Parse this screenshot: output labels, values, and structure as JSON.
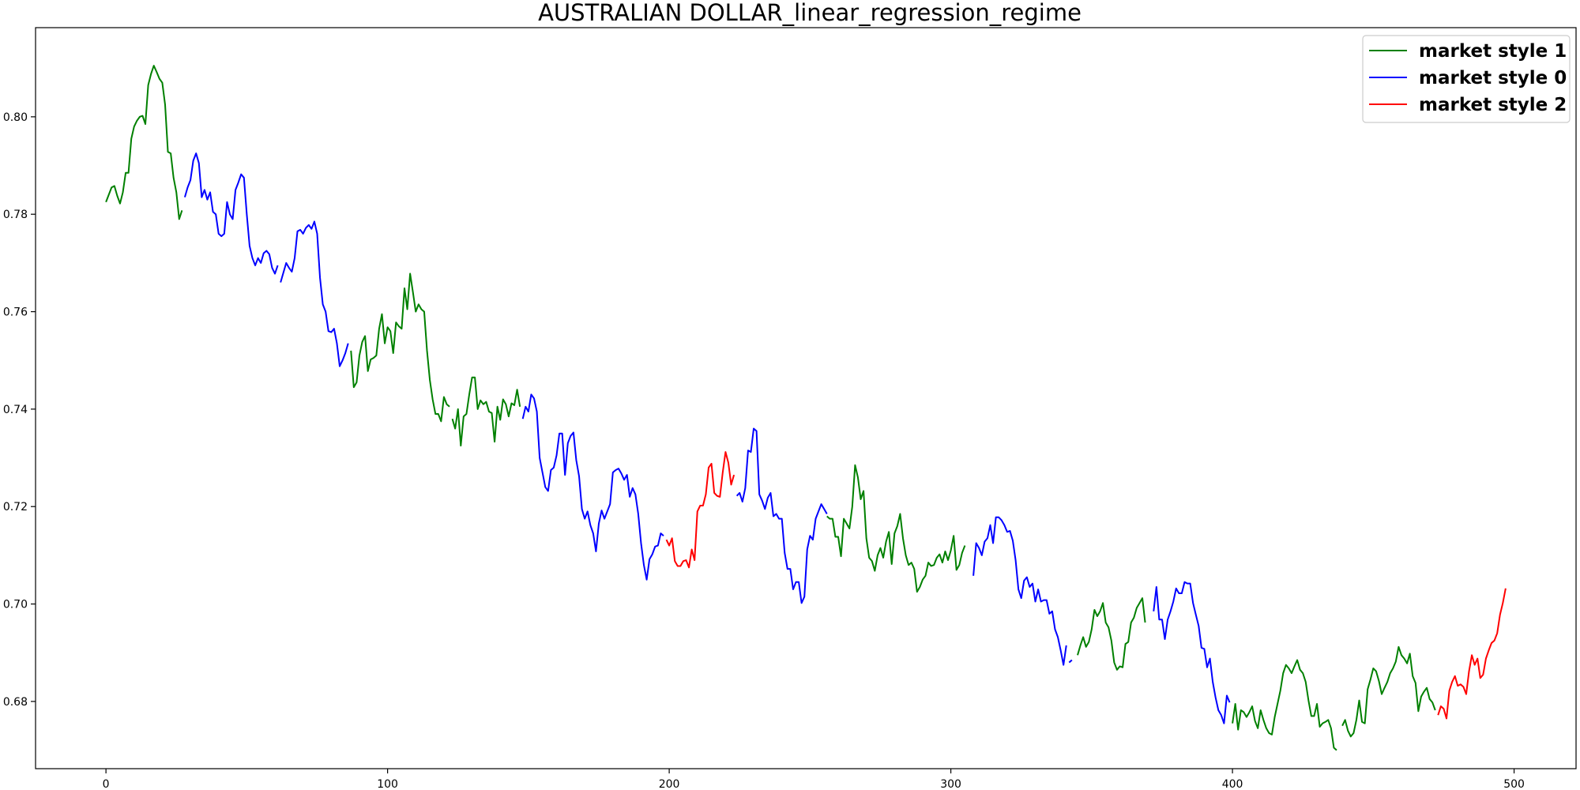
{
  "chart_data": {
    "type": "line",
    "title": "AUSTRALIAN DOLLAR_linear_regression_regime",
    "xlabel": "",
    "ylabel": "",
    "xlim": [
      -25,
      522
    ],
    "ylim": [
      0.6662,
      0.8183
    ],
    "xticks": [
      0,
      100,
      200,
      300,
      400,
      500
    ],
    "yticks": [
      0.68,
      0.7,
      0.72,
      0.74,
      0.76,
      0.78,
      0.8
    ],
    "ytick_labels": [
      "0.68",
      "0.70",
      "0.72",
      "0.74",
      "0.76",
      "0.78",
      "0.80"
    ],
    "legend_position": "top-right",
    "grid": false,
    "legend": [
      {
        "label": "market style 1",
        "color": "#008000"
      },
      {
        "label": "market style 0",
        "color": "#0000ff"
      },
      {
        "label": "market style 2",
        "color": "#ff0000"
      }
    ],
    "segments": [
      {
        "regime": 1,
        "color": "#008000",
        "x0": 0,
        "y": [
          0.7825,
          0.784,
          0.7855,
          0.7858,
          0.7838,
          0.7822,
          0.7845,
          0.7885,
          0.7885,
          0.7955,
          0.798,
          0.7992,
          0.8,
          0.8002,
          0.7985,
          0.8065,
          0.8088,
          0.8105,
          0.8092,
          0.8078,
          0.807,
          0.8025,
          0.7928,
          0.7925,
          0.7875,
          0.7845,
          0.779,
          0.7808
        ]
      },
      {
        "regime": 0,
        "color": "#0000ff",
        "x0": 28,
        "y": [
          0.7835,
          0.7855,
          0.787,
          0.791,
          0.7925,
          0.7905,
          0.7835,
          0.785,
          0.783,
          0.7845,
          0.7805,
          0.78,
          0.776,
          0.7755,
          0.776,
          0.7825,
          0.78,
          0.779,
          0.785,
          0.7865,
          0.7882,
          0.7875,
          0.78,
          0.7735,
          0.771,
          0.7695,
          0.771,
          0.77,
          0.772,
          0.7725,
          0.7718,
          0.769,
          0.7678,
          0.7695
        ]
      },
      {
        "regime": 0,
        "color": "#0000ff",
        "x0": 62,
        "y": [
          0.766,
          0.768,
          0.77,
          0.769,
          0.7682,
          0.771,
          0.7765,
          0.7768,
          0.776,
          0.7772,
          0.7778,
          0.777,
          0.7785,
          0.776,
          0.767,
          0.7615,
          0.76,
          0.756,
          0.7558,
          0.7565,
          0.7535,
          0.7488,
          0.75,
          0.7515,
          0.7535
        ]
      },
      {
        "regime": 1,
        "color": "#008000",
        "x0": 87,
        "y": [
          0.752,
          0.7445,
          0.7455,
          0.751,
          0.7538,
          0.755,
          0.7478,
          0.7502,
          0.7505,
          0.751,
          0.7565,
          0.7595,
          0.7535,
          0.7568,
          0.756,
          0.7515,
          0.7578,
          0.757,
          0.7565,
          0.7648,
          0.7605,
          0.7678,
          0.764,
          0.76,
          0.7615,
          0.7605,
          0.76,
          0.752,
          0.746,
          0.742,
          0.739,
          0.739,
          0.7375,
          0.7425,
          0.741,
          0.7405
        ]
      },
      {
        "regime": 1,
        "color": "#008000",
        "x0": 123,
        "y": [
          0.738,
          0.736,
          0.74,
          0.7325,
          0.7385,
          0.739,
          0.743,
          0.7465,
          0.7465,
          0.74,
          0.7418,
          0.741,
          0.7415,
          0.7395,
          0.7392,
          0.7333,
          0.7405,
          0.7378,
          0.742,
          0.741,
          0.7385,
          0.7412,
          0.7408,
          0.744,
          0.7405
        ]
      },
      {
        "regime": 0,
        "color": "#0000ff",
        "x0": 148,
        "y": [
          0.738,
          0.7405,
          0.7395,
          0.743,
          0.7422,
          0.7395,
          0.73,
          0.727,
          0.724,
          0.7232,
          0.7275,
          0.728,
          0.7305,
          0.735,
          0.735,
          0.7265,
          0.733,
          0.7345,
          0.7352,
          0.7295,
          0.7262,
          0.7195,
          0.7175,
          0.719,
          0.7162,
          0.7145,
          0.7108,
          0.7165,
          0.7192,
          0.7175,
          0.719,
          0.7205,
          0.727,
          0.7275,
          0.7278,
          0.7268,
          0.7255,
          0.7265,
          0.722,
          0.7238,
          0.7225,
          0.7185,
          0.7125,
          0.708,
          0.705,
          0.7092,
          0.7102,
          0.7118,
          0.712,
          0.7145,
          0.714
        ]
      },
      {
        "regime": 2,
        "color": "#ff0000",
        "x0": 199,
        "y": [
          0.7132,
          0.712,
          0.7135,
          0.7088,
          0.7078,
          0.7078,
          0.7088,
          0.709,
          0.7075,
          0.7112,
          0.709,
          0.719,
          0.7202,
          0.7202,
          0.7225,
          0.728,
          0.7288,
          0.7228,
          0.7222,
          0.722,
          0.727,
          0.7312,
          0.729,
          0.7245,
          0.7265
        ]
      },
      {
        "regime": 0,
        "color": "#0000ff",
        "x0": 224,
        "y": [
          0.7222,
          0.7228,
          0.721,
          0.7238,
          0.7315,
          0.7312,
          0.736,
          0.7355,
          0.7225,
          0.7212,
          0.7195,
          0.7218,
          0.7228,
          0.718,
          0.7185,
          0.7175,
          0.7175,
          0.7105,
          0.7072,
          0.7072,
          0.703,
          0.7045,
          0.7045,
          0.7002,
          0.7015,
          0.7112,
          0.714,
          0.7132,
          0.7175,
          0.719,
          0.7205,
          0.7195,
          0.7185
        ]
      },
      {
        "regime": 1,
        "color": "#008000",
        "x0": 256,
        "y": [
          0.718,
          0.7175,
          0.7175,
          0.7138,
          0.7138,
          0.7098,
          0.7175,
          0.7165,
          0.7155,
          0.72,
          0.7285,
          0.726,
          0.7215,
          0.7232,
          0.7135,
          0.7095,
          0.7088,
          0.7068,
          0.71,
          0.7115,
          0.7095,
          0.7128,
          0.7148,
          0.7082,
          0.7145,
          0.716,
          0.7185,
          0.7135,
          0.71,
          0.708,
          0.7085,
          0.7072,
          0.7025,
          0.7035,
          0.705,
          0.7058,
          0.7085,
          0.7078,
          0.708,
          0.7095,
          0.7102,
          0.7085,
          0.7108,
          0.709,
          0.711,
          0.714,
          0.707,
          0.708,
          0.7105,
          0.712
        ]
      },
      {
        "regime": 0,
        "color": "#0000ff",
        "x0": 308,
        "y": [
          0.7058,
          0.7125,
          0.7115,
          0.71,
          0.7128,
          0.7135,
          0.7162,
          0.7125,
          0.7178,
          0.7178,
          0.7172,
          0.7162,
          0.7148,
          0.715,
          0.713,
          0.709,
          0.703,
          0.7012,
          0.7048,
          0.7055,
          0.7035,
          0.7042,
          0.7005,
          0.703,
          0.7005,
          0.7008,
          0.7008,
          0.698,
          0.6985,
          0.6948,
          0.6932,
          0.6905,
          0.6875,
          0.6915
        ]
      },
      {
        "regime": 0,
        "color": "#0000ff",
        "x0": 342,
        "y": [
          0.688,
          0.6885
        ]
      },
      {
        "regime": 1,
        "color": "#008000",
        "x0": 345,
        "y": [
          0.6895,
          0.6915,
          0.6932,
          0.6912,
          0.6922,
          0.6948,
          0.6988,
          0.6975,
          0.6985,
          0.7002,
          0.6962,
          0.6952,
          0.6925,
          0.688,
          0.6865,
          0.6872,
          0.687,
          0.6918,
          0.6922,
          0.6962,
          0.6972,
          0.6992,
          0.7002,
          0.7012,
          0.6962
        ]
      },
      {
        "regime": 0,
        "color": "#0000ff",
        "x0": 372,
        "y": [
          0.6985,
          0.7035,
          0.6968,
          0.6968,
          0.6928,
          0.6968,
          0.6985,
          0.7005,
          0.7032,
          0.7022,
          0.7022,
          0.7045,
          0.7042,
          0.7042,
          0.7002,
          0.6978,
          0.6955,
          0.691,
          0.6908,
          0.687,
          0.6888,
          0.684,
          0.6808,
          0.6782,
          0.6772,
          0.6755,
          0.6812,
          0.6798
        ]
      },
      {
        "regime": 1,
        "color": "#008000",
        "x0": 400,
        "y": [
          0.6755,
          0.6795,
          0.6742,
          0.6782,
          0.6778,
          0.6768,
          0.6778,
          0.679,
          0.676,
          0.6745,
          0.6782,
          0.6762,
          0.6745,
          0.6735,
          0.6732,
          0.6768,
          0.6795,
          0.6822,
          0.6858,
          0.6875,
          0.6868,
          0.6858,
          0.6872,
          0.6885,
          0.6865,
          0.6858,
          0.684,
          0.6802,
          0.677,
          0.677,
          0.6795,
          0.6748,
          0.6755,
          0.6758,
          0.6762,
          0.6745,
          0.6705,
          0.67
        ]
      },
      {
        "regime": 1,
        "color": "#008000",
        "x0": 439,
        "y": [
          0.675,
          0.6762,
          0.674,
          0.6728,
          0.6735,
          0.6762,
          0.6802,
          0.6758,
          0.6755,
          0.6825,
          0.6845,
          0.6868,
          0.6862,
          0.6842,
          0.6815,
          0.6828,
          0.684,
          0.6858,
          0.6868,
          0.6882,
          0.6912,
          0.6895,
          0.6888,
          0.6878,
          0.6898,
          0.6852,
          0.6838,
          0.678,
          0.681,
          0.682,
          0.6828,
          0.6805,
          0.6798,
          0.6782
        ]
      },
      {
        "regime": 2,
        "color": "#ff0000",
        "x0": 473,
        "y": [
          0.6772,
          0.679,
          0.6785,
          0.6765,
          0.6822,
          0.684,
          0.6852,
          0.6832,
          0.6835,
          0.683,
          0.6815,
          0.6862,
          0.6895,
          0.6875,
          0.6888,
          0.6848,
          0.6855,
          0.6888,
          0.6905,
          0.692,
          0.6925,
          0.694,
          0.6978,
          0.7002,
          0.7032
        ]
      }
    ]
  }
}
